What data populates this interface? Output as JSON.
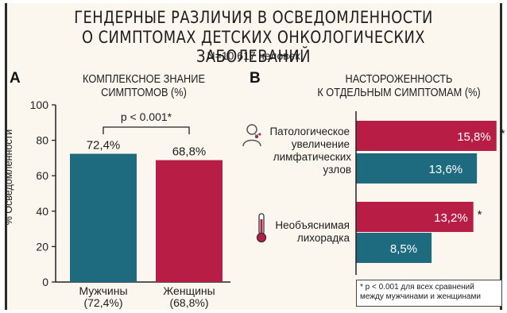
{
  "header": {
    "title_line1": "ГЕНДЕРНЫЕ РАЗЛИЧИЯ В ОСВЕДОМЛЕННОСТИ",
    "title_line2": "О СИМПТОМАХ ДЕТСКИХ ОНКОЛОГИЧЕСКИХ ЗАБОЛЕВАНИЙ",
    "subtitle": "N=10 617 человек"
  },
  "colors": {
    "male": "#1e6b7f",
    "female": "#b81d45",
    "background": "#fbf7ef"
  },
  "chart_data": [
    {
      "panel": "A",
      "type": "bar",
      "title_line1": "КОМПЛЕКСНОЕ ЗНАНИЕ",
      "title_line2": "СИМПТОМОВ (%)",
      "ylabel": "% Осведомленности",
      "ylim": [
        0,
        100
      ],
      "yticks": [
        "0",
        "20",
        "40",
        "60",
        "80",
        "100"
      ],
      "categories": [
        {
          "label": "Мужчины",
          "sub": "(72,4%)",
          "value": 72.4,
          "value_label": "72,4%",
          "color": "#1e6b7f"
        },
        {
          "label": "Женщины",
          "sub": "(68,8%)",
          "value": 68.8,
          "value_label": "68,8%",
          "color": "#b81d45"
        }
      ],
      "annotation": "p < 0.001*"
    },
    {
      "panel": "B",
      "type": "bar",
      "orientation": "horizontal",
      "title_line1": "НАСТОРОЖЕННОСТЬ",
      "title_line2": "К ОТДЕЛЬНЫМ СИМПТОМАМ (%)",
      "xlim": [
        0,
        16
      ],
      "items": [
        {
          "label_lines": [
            "Патологическое",
            "увеличение",
            "лимфатических узлов"
          ],
          "icon": "person-lymph-node-icon",
          "female": 15.8,
          "female_label": "15,8%",
          "male": 13.6,
          "male_label": "13,6%",
          "star": "*"
        },
        {
          "label_lines": [
            "Необъяснимая",
            "лихорадка"
          ],
          "icon": "thermometer-icon",
          "female": 13.2,
          "female_label": "13,2%",
          "male": 8.5,
          "male_label": "8,5%",
          "star": "*"
        }
      ],
      "footnote_line1": "* p < 0.001 для всех сравнений",
      "footnote_line2": "между мужчинами и женщинами"
    }
  ]
}
